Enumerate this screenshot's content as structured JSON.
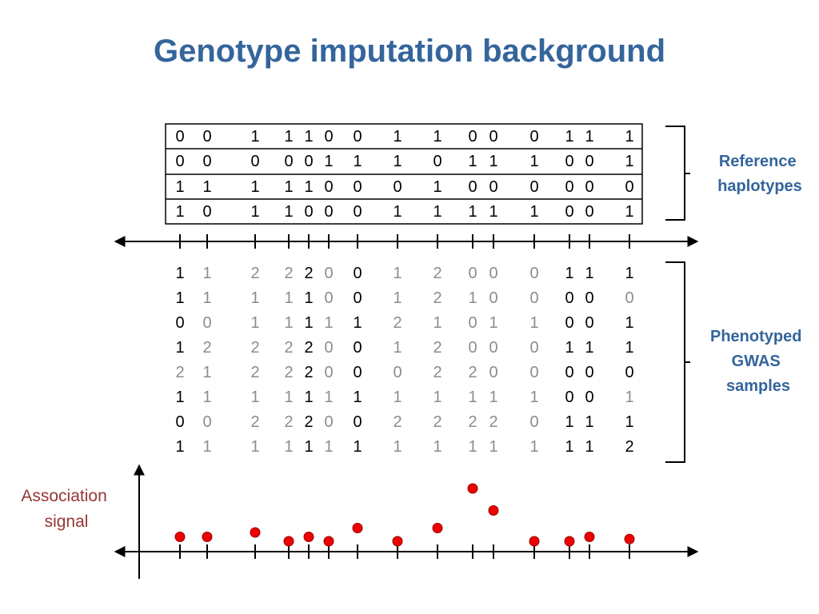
{
  "title": "Genotype imputation background",
  "labels": {
    "reference": [
      "Reference",
      "haplotypes"
    ],
    "phenotyped": [
      "Phenotyped",
      "GWAS",
      "samples"
    ],
    "association": [
      "Association",
      "signal"
    ]
  },
  "colors": {
    "title": "#34659b",
    "association_label": "#953735",
    "observed": "#000000",
    "imputed": "#8c8c8c",
    "dot_fill": "#ee0000",
    "dot_stroke": "#990000"
  },
  "reference_haplotypes": [
    [
      "0",
      "0",
      "1",
      "1",
      "1",
      "0",
      "0",
      "1",
      "1",
      "0",
      "0",
      "0",
      "1",
      "1",
      "1"
    ],
    [
      "0",
      "0",
      "0",
      "0",
      "0",
      "1",
      "1",
      "1",
      "0",
      "1",
      "1",
      "1",
      "0",
      "0",
      "1"
    ],
    [
      "1",
      "1",
      "1",
      "1",
      "1",
      "0",
      "0",
      "0",
      "1",
      "0",
      "0",
      "0",
      "0",
      "0",
      "0"
    ],
    [
      "1",
      "0",
      "1",
      "1",
      "0",
      "0",
      "0",
      "1",
      "1",
      "1",
      "1",
      "1",
      "0",
      "0",
      "1"
    ]
  ],
  "gwas_samples": [
    [
      "1",
      "1",
      "2",
      "2",
      "2",
      "0",
      "0",
      "1",
      "2",
      "0",
      "0",
      "0",
      "1",
      "1",
      "1"
    ],
    [
      "1",
      "1",
      "1",
      "1",
      "1",
      "0",
      "0",
      "1",
      "2",
      "1",
      "0",
      "0",
      "0",
      "0",
      "0"
    ],
    [
      "0",
      "0",
      "1",
      "1",
      "1",
      "1",
      "1",
      "2",
      "1",
      "0",
      "1",
      "1",
      "0",
      "0",
      "1"
    ],
    [
      "1",
      "2",
      "2",
      "2",
      "2",
      "0",
      "0",
      "1",
      "2",
      "0",
      "0",
      "0",
      "1",
      "1",
      "1"
    ],
    [
      "2",
      "1",
      "2",
      "2",
      "2",
      "0",
      "0",
      "0",
      "2",
      "2",
      "0",
      "0",
      "0",
      "0",
      "0"
    ],
    [
      "1",
      "1",
      "1",
      "1",
      "1",
      "1",
      "1",
      "1",
      "1",
      "1",
      "1",
      "1",
      "0",
      "0",
      "1"
    ],
    [
      "0",
      "0",
      "2",
      "2",
      "2",
      "0",
      "0",
      "2",
      "2",
      "2",
      "2",
      "0",
      "1",
      "1",
      "1"
    ],
    [
      "1",
      "1",
      "1",
      "1",
      "1",
      "1",
      "1",
      "1",
      "1",
      "1",
      "1",
      "1",
      "1",
      "1",
      "2"
    ]
  ],
  "observed_columns": [
    0,
    4,
    6,
    12,
    13,
    14
  ],
  "imputed_overrides": [
    [
      4,
      0
    ],
    [
      1,
      14
    ],
    [
      5,
      14
    ]
  ],
  "association_signal": [
    1.5,
    1.5,
    2.0,
    1.0,
    1.5,
    1.0,
    2.5,
    1.0,
    2.5,
    7.0,
    4.5,
    1.0,
    1.0,
    1.5,
    1.25
  ]
}
